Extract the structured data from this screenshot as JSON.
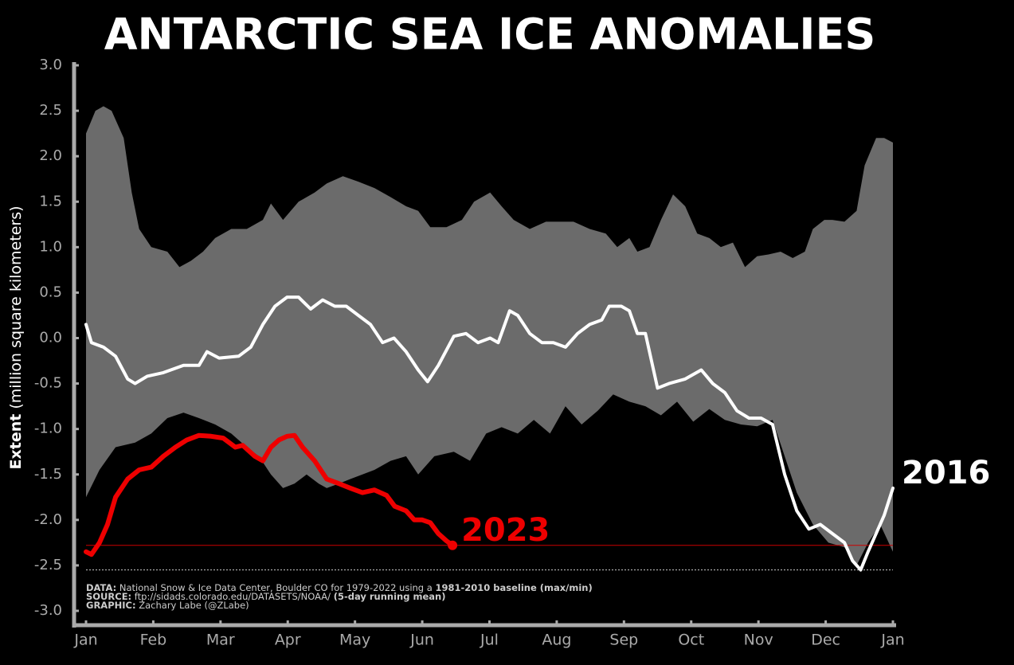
{
  "chart_data": {
    "type": "line",
    "title": "ANTARCTIC SEA ICE ANOMALIES",
    "y_label": {
      "bold": "Extent",
      "text": " (million square kilometers)"
    },
    "xlim": [
      0,
      12
    ],
    "xticks": [
      {
        "value": 0,
        "label": "Jan"
      },
      {
        "value": 1,
        "label": "Feb"
      },
      {
        "value": 2,
        "label": "Mar"
      },
      {
        "value": 3,
        "label": "Apr"
      },
      {
        "value": 4,
        "label": "May"
      },
      {
        "value": 5,
        "label": "Jun"
      },
      {
        "value": 6,
        "label": "Jul"
      },
      {
        "value": 7,
        "label": "Aug"
      },
      {
        "value": 8,
        "label": "Sep"
      },
      {
        "value": 9,
        "label": "Oct"
      },
      {
        "value": 10,
        "label": "Nov"
      },
      {
        "value": 11,
        "label": "Dec"
      },
      {
        "value": 12,
        "label": "Jan"
      }
    ],
    "ylim": [
      -3,
      3
    ],
    "yticks": [
      {
        "value": 3,
        "label": "3.0"
      },
      2.5,
      {
        "value": 2,
        "label": "2.0"
      },
      1.5,
      {
        "value": 1,
        "label": "1.0"
      },
      0.5,
      {
        "value": 0,
        "label": "0.0"
      },
      -0.5,
      {
        "value": -1,
        "label": "-1.0"
      },
      -1.5,
      {
        "value": -2,
        "label": "-2.0"
      },
      -2.5,
      {
        "value": -3,
        "label": "-3.0"
      }
    ],
    "series": [
      {
        "kind": "area",
        "color": "#6b6b6b",
        "x": [
          0,
          0.14,
          0.26,
          0.38,
          0.56,
          0.68,
          0.79,
          0.97,
          1.21,
          1.39,
          1.56,
          1.74,
          1.92,
          2.16,
          2.39,
          2.63,
          2.75,
          2.93,
          3.16,
          3.4,
          3.58,
          3.82,
          4.05,
          4.29,
          4.53,
          4.76,
          4.94,
          5.12,
          5.36,
          5.59,
          5.77,
          6.01,
          6.18,
          6.36,
          6.6,
          6.84,
          7.01,
          7.25,
          7.49,
          7.73,
          7.9,
          8.08,
          8.2,
          8.38,
          8.55,
          8.73,
          8.91,
          9.09,
          9.27,
          9.44,
          9.62,
          9.8,
          9.98,
          10.15,
          10.33,
          10.51,
          10.69,
          10.81,
          10.98,
          11.1,
          11.28,
          11.46,
          11.58,
          11.75,
          11.87,
          12.0
        ],
        "values": [
          2.25,
          2.5,
          2.55,
          2.5,
          2.2,
          1.6,
          1.2,
          1.0,
          0.95,
          0.78,
          0.85,
          0.95,
          1.1,
          1.2,
          1.2,
          1.3,
          1.48,
          1.3,
          1.5,
          1.6,
          1.7,
          1.78,
          1.72,
          1.65,
          1.55,
          1.45,
          1.4,
          1.22,
          1.22,
          1.3,
          1.5,
          1.6,
          1.45,
          1.3,
          1.2,
          1.28,
          1.28,
          1.28,
          1.2,
          1.15,
          1.0,
          1.1,
          0.95,
          1.0,
          1.3,
          1.58,
          1.45,
          1.15,
          1.1,
          1.0,
          1.05,
          0.78,
          0.9,
          0.92,
          0.95,
          0.88,
          0.95,
          1.2,
          1.3,
          1.3,
          1.28,
          1.4,
          1.9,
          2.2,
          2.2,
          2.15
        ]
      },
      {
        "kind": "area",
        "color": "#000000",
        "x": [
          0,
          0.2,
          0.44,
          0.73,
          0.97,
          1.21,
          1.45,
          1.68,
          1.92,
          2.16,
          2.39,
          2.57,
          2.75,
          2.93,
          3.1,
          3.28,
          3.46,
          3.58,
          3.76,
          3.93,
          4.11,
          4.29,
          4.53,
          4.76,
          4.94,
          5.18,
          5.47,
          5.71,
          5.95,
          6.18,
          6.42,
          6.66,
          6.9,
          7.13,
          7.37,
          7.61,
          7.84,
          8.08,
          8.32,
          8.55,
          8.79,
          9.03,
          9.27,
          9.5,
          9.74,
          9.98,
          10.21,
          10.39,
          10.57,
          10.81,
          11.04,
          11.28,
          11.46,
          11.63,
          11.81,
          12.0
        ],
        "values": [
          -1.75,
          -1.45,
          -1.2,
          -1.15,
          -1.05,
          -0.88,
          -0.82,
          -0.88,
          -0.95,
          -1.05,
          -1.2,
          -1.3,
          -1.5,
          -1.65,
          -1.6,
          -1.5,
          -1.6,
          -1.65,
          -1.6,
          -1.55,
          -1.5,
          -1.45,
          -1.35,
          -1.3,
          -1.5,
          -1.3,
          -1.25,
          -1.35,
          -1.05,
          -0.98,
          -1.05,
          -0.9,
          -1.05,
          -0.75,
          -0.95,
          -0.8,
          -0.62,
          -0.7,
          -0.75,
          -0.85,
          -0.7,
          -0.92,
          -0.78,
          -0.9,
          -0.95,
          -0.97,
          -0.9,
          -1.3,
          -1.7,
          -2.05,
          -2.25,
          -2.3,
          -2.5,
          -2.25,
          -2.05,
          -2.35
        ]
      },
      {
        "kind": "line",
        "name": "2016",
        "color": "#ffffff",
        "x": [
          0,
          0.08,
          0.26,
          0.44,
          0.62,
          0.73,
          0.91,
          1.15,
          1.45,
          1.68,
          1.8,
          1.98,
          2.27,
          2.45,
          2.63,
          2.81,
          2.99,
          3.16,
          3.34,
          3.52,
          3.7,
          3.87,
          4.05,
          4.23,
          4.41,
          4.58,
          4.76,
          4.94,
          5.08,
          5.24,
          5.47,
          5.65,
          5.83,
          6.01,
          6.13,
          6.3,
          6.42,
          6.6,
          6.78,
          6.95,
          7.13,
          7.31,
          7.49,
          7.67,
          7.78,
          7.96,
          8.08,
          8.2,
          8.32,
          8.5,
          8.67,
          8.91,
          9.15,
          9.32,
          9.5,
          9.68,
          9.86,
          10.04,
          10.21,
          10.39,
          10.57,
          10.75,
          10.92,
          11.1,
          11.28,
          11.4,
          11.52,
          11.63,
          11.75,
          11.87,
          12.0
        ],
        "values": [
          0.15,
          -0.05,
          -0.1,
          -0.2,
          -0.45,
          -0.5,
          -0.42,
          -0.38,
          -0.3,
          -0.3,
          -0.15,
          -0.22,
          -0.2,
          -0.1,
          0.15,
          0.35,
          0.45,
          0.45,
          0.32,
          0.42,
          0.35,
          0.35,
          0.25,
          0.15,
          -0.05,
          0,
          -0.15,
          -0.35,
          -0.48,
          -0.3,
          0.02,
          0.05,
          -0.05,
          0,
          -0.05,
          0.3,
          0.25,
          0.05,
          -0.05,
          -0.05,
          -0.1,
          0.05,
          0.15,
          0.2,
          0.35,
          0.35,
          0.3,
          0.05,
          0.05,
          -0.55,
          -0.5,
          -0.45,
          -0.35,
          -0.5,
          -0.6,
          -0.8,
          -0.88,
          -0.88,
          -0.95,
          -1.5,
          -1.9,
          -2.1,
          -2.05,
          -2.15,
          -2.25,
          -2.45,
          -2.55,
          -2.35,
          -2.15,
          -1.95,
          -1.65
        ]
      },
      {
        "kind": "line",
        "name": "2023",
        "color": "#ee0000",
        "x": [
          0,
          0.08,
          0.2,
          0.32,
          0.44,
          0.62,
          0.79,
          0.97,
          1.15,
          1.33,
          1.5,
          1.68,
          1.86,
          2.04,
          2.22,
          2.33,
          2.51,
          2.63,
          2.75,
          2.87,
          2.99,
          3.1,
          3.22,
          3.4,
          3.58,
          3.76,
          3.93,
          4.11,
          4.29,
          4.47,
          4.59,
          4.76,
          4.88,
          5.0,
          5.12,
          5.24,
          5.36,
          5.45
        ],
        "values": [
          -2.35,
          -2.38,
          -2.25,
          -2.05,
          -1.75,
          -1.55,
          -1.45,
          -1.42,
          -1.3,
          -1.2,
          -1.12,
          -1.07,
          -1.08,
          -1.1,
          -1.2,
          -1.18,
          -1.3,
          -1.35,
          -1.2,
          -1.12,
          -1.08,
          -1.07,
          -1.2,
          -1.35,
          -1.55,
          -1.6,
          -1.65,
          -1.7,
          -1.67,
          -1.73,
          -1.85,
          -1.9,
          -2.0,
          -2.0,
          -2.03,
          -2.15,
          -2.23,
          -2.28
        ]
      }
    ],
    "hlines": [
      {
        "value": -2.28,
        "color": "#cc0000"
      },
      {
        "value": -2.55,
        "color": "#cccccc",
        "dashed": true
      }
    ],
    "notes": [
      {
        "label": "DATA:",
        "text": " National Snow & Ice Data Center, Boulder CO for 1979-2022 using a ",
        "bold": "1981-2010 baseline (max/min)"
      },
      {
        "label": "SOURCE:",
        "text": " ftp://sidads.colorado.edu/DATASETS/NOAA/ ",
        "bold": "(5-day running mean)"
      },
      {
        "label": "GRAPHIC:",
        "text": " Zachary Labe (@ZLabe)"
      }
    ]
  }
}
